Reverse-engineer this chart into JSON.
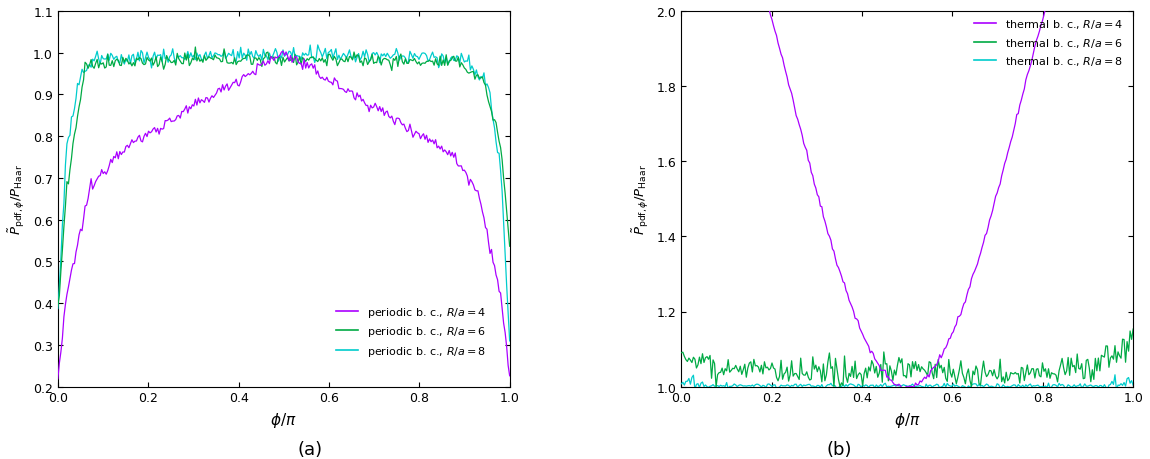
{
  "xlabel": "$\\phi/\\pi$",
  "left_ylabel": "$\\tilde{P}_{\\mathrm{pdf},\\phi}/P_{\\mathrm{Haar}}$",
  "right_ylabel": "$\\tilde{P}_{\\mathrm{pdf},\\phi}/P_{\\mathrm{Haar}}$",
  "left_ylim": [
    0.2,
    1.1
  ],
  "right_ylim": [
    1.0,
    2.0
  ],
  "xlim": [
    0.0,
    1.0
  ],
  "left_yticks": [
    0.2,
    0.3,
    0.4,
    0.5,
    0.6,
    0.7,
    0.8,
    0.9,
    1.0,
    1.1
  ],
  "right_yticks": [
    1.0,
    1.2,
    1.4,
    1.6,
    1.8,
    2.0
  ],
  "xticks": [
    0.0,
    0.2,
    0.4,
    0.6,
    0.8,
    1.0
  ],
  "label_a": "(a)",
  "label_b": "(b)",
  "colors": {
    "purple": "#AA00FF",
    "green": "#00AA44",
    "cyan": "#00CCCC"
  },
  "left_legend": [
    {
      "label": "periodic b. c., $R/a = 4$",
      "color": "#AA00FF"
    },
    {
      "label": "periodic b. c., $R/a = 6$",
      "color": "#00AA44"
    },
    {
      "label": "periodic b. c., $R/a = 8$",
      "color": "#00CCCC"
    }
  ],
  "right_legend": [
    {
      "label": "thermal b. c., $R/a = 4$",
      "color": "#AA00FF"
    },
    {
      "label": "thermal b. c., $R/a = 6$",
      "color": "#00AA44"
    },
    {
      "label": "thermal b. c., $R/a = 8$",
      "color": "#00CCCC"
    }
  ]
}
